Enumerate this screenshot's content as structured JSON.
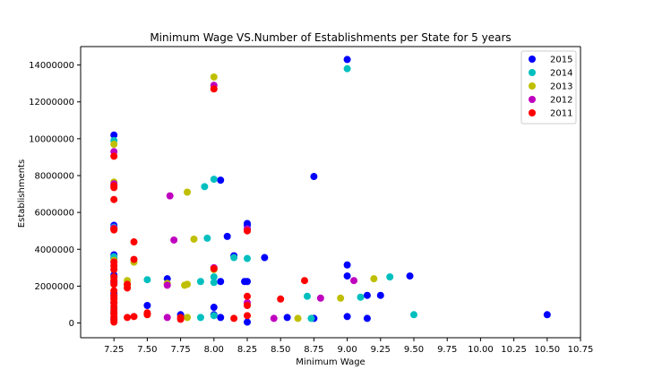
{
  "chart_data": {
    "type": "scatter",
    "title": "Minimum Wage VS.Number of Establishments per State for 5 years",
    "xlabel": "Minimum Wage",
    "ylabel": "Establishments",
    "xlim": [
      7.0,
      10.75
    ],
    "ylim": [
      -800000,
      15000000
    ],
    "xticks": [
      7.25,
      7.5,
      7.75,
      8.0,
      8.25,
      8.5,
      8.75,
      9.0,
      9.25,
      9.5,
      9.75,
      10.0,
      10.25,
      10.5,
      10.75
    ],
    "xtick_labels": [
      "7.25",
      "7.50",
      "7.75",
      "8.00",
      "8.25",
      "8.50",
      "8.75",
      "9.00",
      "9.25",
      "9.50",
      "9.75",
      "10.00",
      "10.25",
      "10.50",
      "10.75"
    ],
    "yticks": [
      0,
      2000000,
      4000000,
      6000000,
      8000000,
      10000000,
      12000000,
      14000000
    ],
    "ytick_labels": [
      "0",
      "2000000",
      "4000000",
      "6000000",
      "8000000",
      "10000000",
      "12000000",
      "14000000"
    ],
    "grid": false,
    "legend_position": "top-right",
    "series": [
      {
        "name": "2015",
        "color": "#0000ff",
        "points": [
          [
            7.25,
            10200000
          ],
          [
            7.25,
            5300000
          ],
          [
            7.25,
            3700000
          ],
          [
            7.25,
            3500000
          ],
          [
            7.25,
            2600000
          ],
          [
            7.25,
            2200000
          ],
          [
            7.25,
            1600000
          ],
          [
            7.25,
            1100000
          ],
          [
            7.25,
            600000
          ],
          [
            7.25,
            200000
          ],
          [
            7.5,
            950000
          ],
          [
            7.65,
            2400000
          ],
          [
            7.75,
            450000
          ],
          [
            8.0,
            850000
          ],
          [
            8.0,
            450000
          ],
          [
            8.05,
            7750000
          ],
          [
            8.05,
            2250000
          ],
          [
            8.05,
            300000
          ],
          [
            8.1,
            4700000
          ],
          [
            8.15,
            3650000
          ],
          [
            8.23,
            2250000
          ],
          [
            8.25,
            5400000
          ],
          [
            8.25,
            5300000
          ],
          [
            8.25,
            2250000
          ],
          [
            8.25,
            50000
          ],
          [
            8.38,
            3550000
          ],
          [
            8.55,
            300000
          ],
          [
            8.75,
            7950000
          ],
          [
            8.75,
            250000
          ],
          [
            9.0,
            14300000
          ],
          [
            9.0,
            3150000
          ],
          [
            9.0,
            2550000
          ],
          [
            9.0,
            350000
          ],
          [
            9.15,
            1500000
          ],
          [
            9.15,
            250000
          ],
          [
            9.25,
            1500000
          ],
          [
            9.47,
            2550000
          ],
          [
            10.5,
            450000
          ]
        ]
      },
      {
        "name": "2014",
        "color": "#00bfbf",
        "points": [
          [
            7.25,
            9900000
          ],
          [
            7.25,
            5200000
          ],
          [
            7.25,
            3600000
          ],
          [
            7.25,
            2500000
          ],
          [
            7.25,
            1500000
          ],
          [
            7.25,
            800000
          ],
          [
            7.25,
            300000
          ],
          [
            7.5,
            2350000
          ],
          [
            7.9,
            2250000
          ],
          [
            7.9,
            300000
          ],
          [
            7.93,
            7400000
          ],
          [
            7.95,
            4600000
          ],
          [
            8.0,
            7800000
          ],
          [
            8.0,
            2500000
          ],
          [
            8.0,
            2200000
          ],
          [
            8.0,
            400000
          ],
          [
            8.15,
            3550000
          ],
          [
            8.25,
            3500000
          ],
          [
            8.25,
            5100000
          ],
          [
            8.7,
            1450000
          ],
          [
            8.73,
            250000
          ],
          [
            9.0,
            13800000
          ],
          [
            9.1,
            1400000
          ],
          [
            9.32,
            2500000
          ],
          [
            9.5,
            450000
          ]
        ]
      },
      {
        "name": "2013",
        "color": "#bfbf00",
        "points": [
          [
            7.25,
            9700000
          ],
          [
            7.25,
            7650000
          ],
          [
            7.25,
            5100000
          ],
          [
            7.25,
            3400000
          ],
          [
            7.25,
            2400000
          ],
          [
            7.25,
            1300000
          ],
          [
            7.25,
            600000
          ],
          [
            7.35,
            2300000
          ],
          [
            7.35,
            2050000
          ],
          [
            7.4,
            3300000
          ],
          [
            7.5,
            500000
          ],
          [
            7.65,
            2150000
          ],
          [
            7.78,
            2050000
          ],
          [
            7.8,
            2100000
          ],
          [
            7.8,
            7100000
          ],
          [
            7.8,
            300000
          ],
          [
            7.85,
            4550000
          ],
          [
            8.0,
            13350000
          ],
          [
            8.0,
            2900000
          ],
          [
            8.25,
            5050000
          ],
          [
            8.25,
            1000000
          ],
          [
            8.63,
            250000
          ],
          [
            8.95,
            1350000
          ],
          [
            9.2,
            2400000
          ]
        ]
      },
      {
        "name": "2012",
        "color": "#bf00bf",
        "points": [
          [
            7.25,
            9300000
          ],
          [
            7.25,
            7550000
          ],
          [
            7.25,
            5150000
          ],
          [
            7.25,
            3300000
          ],
          [
            7.25,
            2300000
          ],
          [
            7.25,
            1400000
          ],
          [
            7.25,
            500000
          ],
          [
            7.65,
            2050000
          ],
          [
            7.65,
            300000
          ],
          [
            7.67,
            6900000
          ],
          [
            7.7,
            4500000
          ],
          [
            8.0,
            12900000
          ],
          [
            8.0,
            3000000
          ],
          [
            8.25,
            5100000
          ],
          [
            8.25,
            1100000
          ],
          [
            8.45,
            250000
          ],
          [
            8.8,
            1350000
          ],
          [
            9.05,
            2300000
          ]
        ]
      },
      {
        "name": "2011",
        "color": "#ff0000",
        "points": [
          [
            7.25,
            9050000
          ],
          [
            7.25,
            7450000
          ],
          [
            7.25,
            7350000
          ],
          [
            7.25,
            6700000
          ],
          [
            7.25,
            5100000
          ],
          [
            7.25,
            5050000
          ],
          [
            7.25,
            3300000
          ],
          [
            7.25,
            3100000
          ],
          [
            7.25,
            2900000
          ],
          [
            7.25,
            2500000
          ],
          [
            7.25,
            2300000
          ],
          [
            7.25,
            2100000
          ],
          [
            7.25,
            1750000
          ],
          [
            7.25,
            1500000
          ],
          [
            7.25,
            1300000
          ],
          [
            7.25,
            1100000
          ],
          [
            7.25,
            900000
          ],
          [
            7.25,
            700000
          ],
          [
            7.25,
            500000
          ],
          [
            7.25,
            300000
          ],
          [
            7.25,
            150000
          ],
          [
            7.25,
            50000
          ],
          [
            7.35,
            2100000
          ],
          [
            7.35,
            1900000
          ],
          [
            7.35,
            300000
          ],
          [
            7.4,
            4400000
          ],
          [
            7.4,
            3450000
          ],
          [
            7.4,
            350000
          ],
          [
            7.5,
            550000
          ],
          [
            7.5,
            450000
          ],
          [
            7.75,
            300000
          ],
          [
            7.75,
            200000
          ],
          [
            8.0,
            12700000
          ],
          [
            8.0,
            2950000
          ],
          [
            8.15,
            250000
          ],
          [
            8.25,
            5000000
          ],
          [
            8.25,
            1450000
          ],
          [
            8.25,
            950000
          ],
          [
            8.25,
            400000
          ],
          [
            8.5,
            1300000
          ],
          [
            8.68,
            2300000
          ]
        ]
      }
    ]
  }
}
